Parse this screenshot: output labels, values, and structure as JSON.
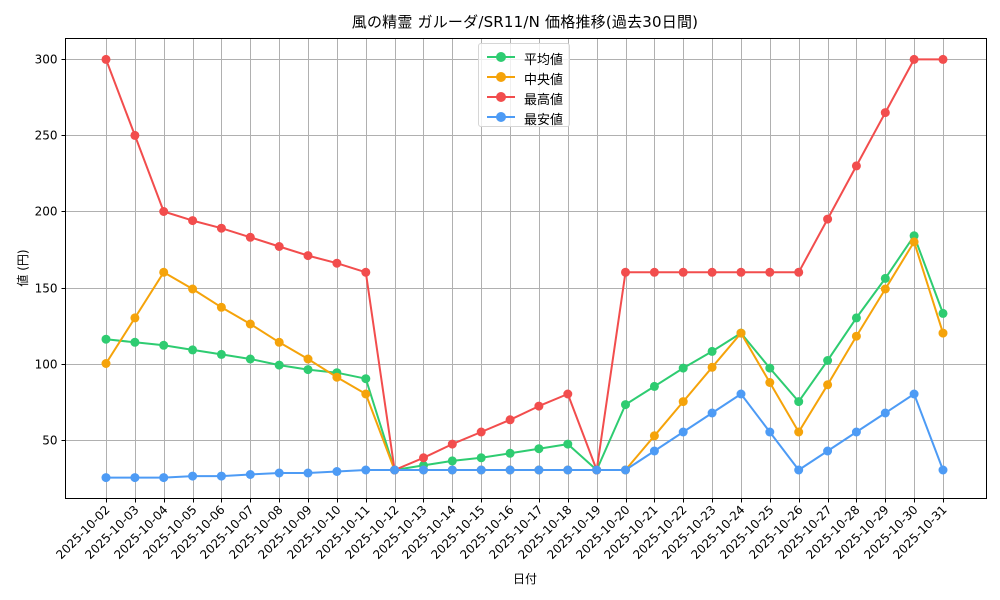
{
  "chart_data": {
    "type": "line",
    "title": "風の精霊 ガルーダ/SR11/N 価格推移(過去30日間)",
    "xlabel": "日付",
    "ylabel": "値 (円)",
    "ylim": [
      11.25,
      313.75
    ],
    "yticks": [
      50,
      100,
      150,
      200,
      250,
      300
    ],
    "grid": true,
    "legend_position": "upper center",
    "x": [
      "2025-10-02",
      "2025-10-03",
      "2025-10-04",
      "2025-10-05",
      "2025-10-06",
      "2025-10-07",
      "2025-10-08",
      "2025-10-09",
      "2025-10-10",
      "2025-10-11",
      "2025-10-12",
      "2025-10-13",
      "2025-10-14",
      "2025-10-15",
      "2025-10-16",
      "2025-10-17",
      "2025-10-18",
      "2025-10-19",
      "2025-10-20",
      "2025-10-21",
      "2025-10-22",
      "2025-10-23",
      "2025-10-24",
      "2025-10-25",
      "2025-10-26",
      "2025-10-27",
      "2025-10-28",
      "2025-10-29",
      "2025-10-30",
      "2025-10-31"
    ],
    "series": [
      {
        "name": "平均値",
        "color": "#2ecc71",
        "values": [
          116,
          114,
          112,
          109,
          106,
          103,
          99,
          96,
          94,
          90,
          30,
          33,
          36,
          38,
          41,
          44,
          47,
          30,
          73,
          85,
          97,
          108,
          120,
          97,
          75,
          102,
          130,
          156,
          184,
          133
        ]
      },
      {
        "name": "中央値",
        "color": "#f5a30a",
        "values": [
          100,
          130,
          160,
          149,
          137,
          126,
          114,
          103,
          91,
          80,
          30,
          30,
          30,
          30,
          30,
          30,
          30,
          30,
          30,
          52.5,
          75,
          97.5,
          120,
          87.5,
          55,
          86,
          118,
          149,
          180,
          120
        ]
      },
      {
        "name": "最高値",
        "color": "#f24d4d",
        "values": [
          300,
          250,
          200,
          194,
          189,
          183,
          177,
          171,
          166,
          160,
          30,
          38,
          47,
          55,
          63,
          72,
          80,
          30,
          160,
          160,
          160,
          160,
          160,
          160,
          160,
          195,
          230,
          265,
          300,
          300
        ]
      },
      {
        "name": "最安値",
        "color": "#4d9bf5",
        "values": [
          25,
          25,
          25,
          26,
          26,
          27,
          28,
          28,
          29,
          30,
          30,
          30,
          30,
          30,
          30,
          30,
          30,
          30,
          30,
          42.5,
          55,
          67.5,
          80,
          55,
          30,
          42.5,
          55,
          67.5,
          80,
          30
        ]
      }
    ]
  }
}
